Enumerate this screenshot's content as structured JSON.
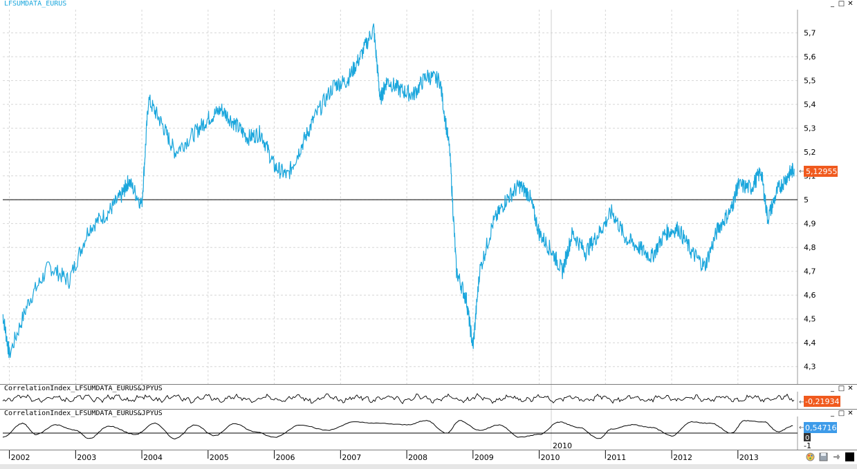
{
  "panes": [
    {
      "title": "LFSUMDATA_EURUS",
      "title_color": "#1aa6dc"
    },
    {
      "title": "CorrelationIndex_LFSUMDATA_EURUS&JPYUS",
      "title_color": "#000000"
    },
    {
      "title": "CorrelationIndex_LFSUMDATA_EURUS&JPYUS",
      "title_color": "#000000"
    }
  ],
  "window_buttons": [
    "_",
    "□",
    "✕"
  ],
  "colors": {
    "price_line": "#1aa6dc",
    "indicator_line": "#000000",
    "grid": "#d6d6d6",
    "value_tag_orange": "#f05a1e",
    "value_tag_blue": "#3d9be9"
  },
  "price_axis": {
    "labels": [
      "5,7",
      "5,6",
      "5,5",
      "5,4",
      "5,3",
      "5,2",
      "5,1",
      "5",
      "4,9",
      "4,8",
      "4,7",
      "4,6",
      "4,5",
      "4,4",
      "4,3"
    ]
  },
  "tags": {
    "price_last": "5,12955",
    "corr1_last": "-0,21934",
    "corr2_last": "0,54716",
    "corr2_zero": "0",
    "corr2_min": "-1"
  },
  "time_axis": {
    "labels": [
      "2002",
      "2003",
      "2004",
      "2005",
      "2006",
      "2007",
      "2008",
      "2009",
      "2010",
      "2011",
      "2012",
      "2013"
    ],
    "crosshair_label": "2010"
  },
  "icons": [
    "palette-icon",
    "save-icon",
    "pin-icon",
    "color-square-icon"
  ],
  "chart_data": [
    {
      "type": "line",
      "title": "LFSUMDATA_EURUS",
      "x": [
        2001.9,
        2002.0,
        2002.3,
        2002.6,
        2002.9,
        2003.2,
        2003.5,
        2003.7,
        2003.8,
        2004.0,
        2004.1,
        2004.3,
        2004.5,
        2004.8,
        2005.0,
        2005.2,
        2005.4,
        2005.6,
        2005.8,
        2006.0,
        2006.2,
        2006.4,
        2006.6,
        2006.9,
        2007.1,
        2007.3,
        2007.5,
        2007.6,
        2007.7,
        2007.9,
        2008.1,
        2008.3,
        2008.5,
        2008.65,
        2008.75,
        2008.9,
        2009.0,
        2009.1,
        2009.3,
        2009.5,
        2009.7,
        2009.85,
        2010.0,
        2010.2,
        2010.35,
        2010.5,
        2010.7,
        2010.9,
        2011.1,
        2011.3,
        2011.5,
        2011.7,
        2011.9,
        2012.1,
        2012.3,
        2012.5,
        2012.7,
        2012.9,
        2013.0,
        2013.2,
        2013.35,
        2013.45,
        2013.6,
        2013.75,
        2013.85
      ],
      "y": [
        4.52,
        4.35,
        4.58,
        4.72,
        4.66,
        4.88,
        4.95,
        5.02,
        5.08,
        4.98,
        5.42,
        5.32,
        5.2,
        5.28,
        5.34,
        5.38,
        5.32,
        5.26,
        5.28,
        5.14,
        5.1,
        5.22,
        5.34,
        5.48,
        5.5,
        5.6,
        5.72,
        5.42,
        5.5,
        5.46,
        5.44,
        5.52,
        5.5,
        5.2,
        4.7,
        4.58,
        4.38,
        4.7,
        4.9,
        5.0,
        5.06,
        5.02,
        4.86,
        4.78,
        4.7,
        4.86,
        4.78,
        4.86,
        4.95,
        4.84,
        4.8,
        4.76,
        4.86,
        4.88,
        4.78,
        4.72,
        4.88,
        4.96,
        5.06,
        5.05,
        5.12,
        4.92,
        5.04,
        5.1,
        5.13
      ],
      "ylim": [
        4.25,
        5.78
      ],
      "xlim": [
        2001.9,
        2013.9
      ],
      "reference_line": 5.0,
      "last_value": 5.12955
    },
    {
      "type": "line",
      "title": "CorrelationIndex_LFSUMDATA_EURUS&JPYUS",
      "series_desc": "short-window correlation, oscillating around -0.2",
      "last_value": -0.21934
    },
    {
      "type": "line",
      "title": "CorrelationIndex_LFSUMDATA_EURUS&JPYUS",
      "x": [
        2001.9,
        2002.2,
        2002.4,
        2002.7,
        2003.0,
        2003.2,
        2003.5,
        2003.9,
        2004.2,
        2004.5,
        2004.8,
        2005.1,
        2005.4,
        2005.7,
        2006.0,
        2006.4,
        2006.8,
        2007.2,
        2007.6,
        2008.0,
        2008.3,
        2008.6,
        2008.8,
        2009.1,
        2009.4,
        2009.7,
        2010.0,
        2010.3,
        2010.6,
        2010.9,
        2011.1,
        2011.4,
        2011.7,
        2012.0,
        2012.3,
        2012.6,
        2012.9,
        2013.1,
        2013.4,
        2013.6,
        2013.85
      ],
      "y": [
        -0.3,
        0.7,
        -0.1,
        0.6,
        0.2,
        -0.4,
        0.5,
        -0.1,
        0.7,
        -0.4,
        0.6,
        -0.2,
        0.7,
        0.1,
        -0.3,
        0.6,
        0.2,
        0.8,
        0.7,
        0.6,
        0.9,
        0.0,
        0.9,
        0.2,
        0.6,
        -0.3,
        -0.1,
        0.8,
        0.4,
        -0.4,
        0.3,
        0.6,
        0.4,
        -0.2,
        0.8,
        0.7,
        0.0,
        0.9,
        0.8,
        0.1,
        0.55
      ],
      "ylim": [
        -1.1,
        1.1
      ],
      "last_value": 0.54716
    }
  ]
}
